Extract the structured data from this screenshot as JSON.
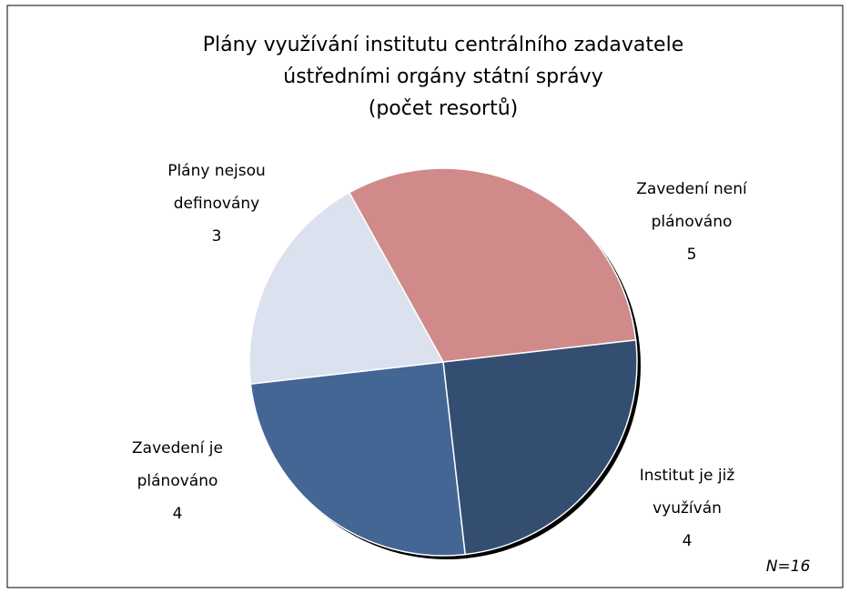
{
  "chart_data": {
    "type": "pie",
    "title": [
      "Plány využívání institutu centrálního zadavatele",
      "ústředními orgány státní správy",
      "(počet resortů)"
    ],
    "categories": [
      "Zavedení není plánováno",
      "Institut je již využíván",
      "Zavedení je plánováno",
      "Plány nejsou definovány"
    ],
    "values": [
      5,
      4,
      4,
      3
    ],
    "colors": [
      "#d08a8a",
      "#344e72",
      "#436695",
      "#dbe1ee"
    ],
    "annotation": "N=16"
  }
}
